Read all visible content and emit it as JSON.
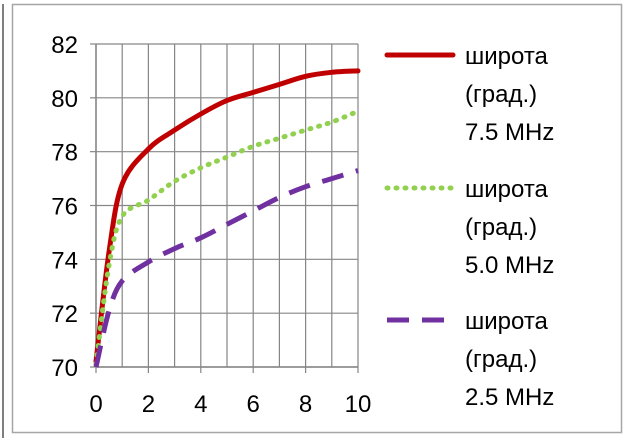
{
  "chart_data": {
    "type": "line",
    "title": "",
    "xlabel": "",
    "ylabel": "",
    "xlim": [
      0,
      10
    ],
    "ylim": [
      70,
      82
    ],
    "x_ticks": [
      "0",
      "2",
      "4",
      "6",
      "8",
      "10"
    ],
    "y_ticks": [
      "70",
      "72",
      "74",
      "76",
      "78",
      "80",
      "82"
    ],
    "grid": "vertical-and-horizontal",
    "legend_position": "right",
    "series": [
      {
        "name_lines": [
          "широта",
          "(град.)",
          "7.5 MHz"
        ],
        "color": "#c00000",
        "style": "solid",
        "x": [
          0,
          0.5,
          1,
          2,
          3,
          4,
          5,
          6,
          7,
          8,
          9,
          10
        ],
        "y": [
          70.2,
          74.3,
          76.8,
          78.1,
          78.8,
          79.4,
          79.9,
          80.2,
          80.5,
          80.8,
          80.95,
          81.0
        ]
      },
      {
        "name_lines": [
          "широта",
          "(град.)",
          "5.0 MHz"
        ],
        "color": "#92d050",
        "style": "dotted",
        "x": [
          0,
          0.5,
          1,
          2,
          3,
          4,
          5,
          6,
          7,
          8,
          9,
          10
        ],
        "y": [
          70.1,
          73.8,
          75.6,
          76.2,
          76.9,
          77.4,
          77.8,
          78.2,
          78.5,
          78.8,
          79.1,
          79.5
        ]
      },
      {
        "name_lines": [
          "широта",
          "(град.)",
          "2.5 MHz"
        ],
        "color": "#7030a0",
        "style": "dashed",
        "x": [
          0,
          0.5,
          1,
          2,
          3,
          4,
          5,
          6,
          7,
          8,
          9,
          10
        ],
        "y": [
          70.0,
          72.1,
          73.2,
          73.9,
          74.4,
          74.8,
          75.3,
          75.8,
          76.3,
          76.7,
          77.0,
          77.3
        ]
      }
    ]
  }
}
